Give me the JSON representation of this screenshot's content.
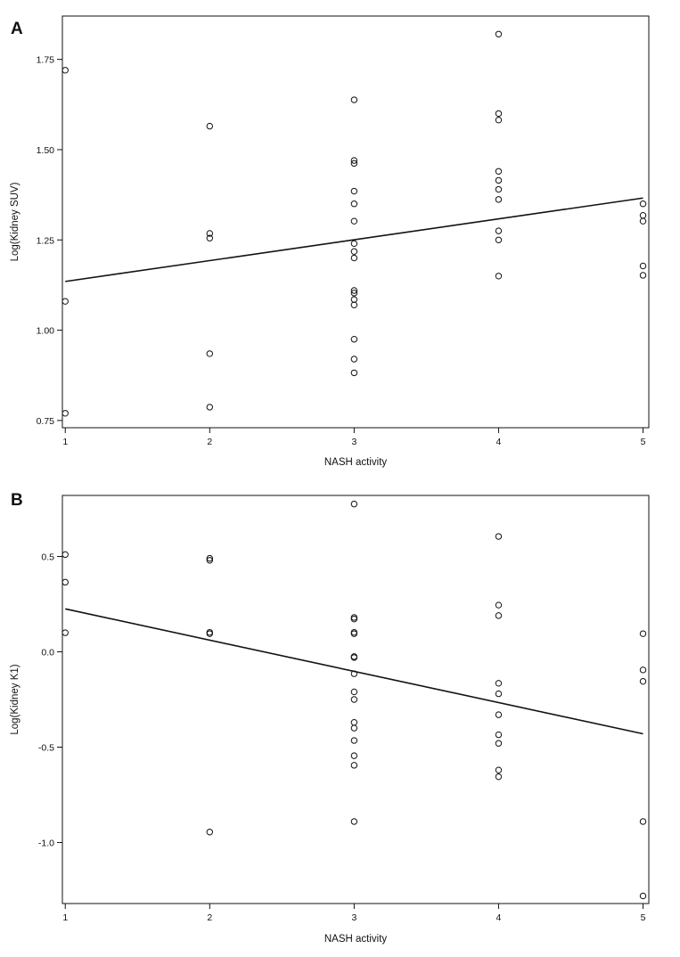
{
  "chart_data": [
    {
      "type": "scatter",
      "panel_label": "A",
      "xlabel": "NASH activity",
      "ylabel": "Log(Kidney SUV)",
      "xlim": [
        0.98,
        5.04
      ],
      "ylim": [
        0.73,
        1.87
      ],
      "xticks": [
        1,
        2,
        3,
        4,
        5
      ],
      "xtick_labels": [
        "1",
        "2",
        "3",
        "4",
        "5"
      ],
      "yticks": [
        0.75,
        1.0,
        1.25,
        1.5,
        1.75
      ],
      "ytick_labels": [
        "0.75",
        "1.00",
        "1.25",
        "1.50",
        "1.75"
      ],
      "grid": false,
      "points": [
        {
          "x": 1,
          "y": 1.72
        },
        {
          "x": 1,
          "y": 1.08
        },
        {
          "x": 1,
          "y": 0.77
        },
        {
          "x": 2,
          "y": 1.565
        },
        {
          "x": 2,
          "y": 1.268
        },
        {
          "x": 2,
          "y": 1.255
        },
        {
          "x": 2,
          "y": 0.935
        },
        {
          "x": 2,
          "y": 0.787
        },
        {
          "x": 3,
          "y": 1.638
        },
        {
          "x": 3,
          "y": 1.47
        },
        {
          "x": 3,
          "y": 1.462
        },
        {
          "x": 3,
          "y": 1.385
        },
        {
          "x": 3,
          "y": 1.35
        },
        {
          "x": 3,
          "y": 1.302
        },
        {
          "x": 3,
          "y": 1.24
        },
        {
          "x": 3,
          "y": 1.218
        },
        {
          "x": 3,
          "y": 1.2
        },
        {
          "x": 3,
          "y": 1.11
        },
        {
          "x": 3,
          "y": 1.103
        },
        {
          "x": 3,
          "y": 1.085
        },
        {
          "x": 3,
          "y": 1.07
        },
        {
          "x": 3,
          "y": 0.975
        },
        {
          "x": 3,
          "y": 0.92
        },
        {
          "x": 3,
          "y": 0.882
        },
        {
          "x": 4,
          "y": 1.82
        },
        {
          "x": 4,
          "y": 1.6
        },
        {
          "x": 4,
          "y": 1.582
        },
        {
          "x": 4,
          "y": 1.44
        },
        {
          "x": 4,
          "y": 1.415
        },
        {
          "x": 4,
          "y": 1.39
        },
        {
          "x": 4,
          "y": 1.362
        },
        {
          "x": 4,
          "y": 1.275
        },
        {
          "x": 4,
          "y": 1.25
        },
        {
          "x": 4,
          "y": 1.15
        },
        {
          "x": 5,
          "y": 1.35
        },
        {
          "x": 5,
          "y": 1.318
        },
        {
          "x": 5,
          "y": 1.302
        },
        {
          "x": 5,
          "y": 1.178
        },
        {
          "x": 5,
          "y": 1.152
        }
      ],
      "fit_line": {
        "x": [
          1,
          5
        ],
        "y": [
          1.135,
          1.366
        ]
      }
    },
    {
      "type": "scatter",
      "panel_label": "B",
      "xlabel": "NASH activity",
      "ylabel": "Log(Kidney K1)",
      "xlim": [
        0.98,
        5.04
      ],
      "ylim": [
        -1.32,
        0.82
      ],
      "xticks": [
        1,
        2,
        3,
        4,
        5
      ],
      "xtick_labels": [
        "1",
        "2",
        "3",
        "4",
        "5"
      ],
      "yticks": [
        -1.0,
        -0.5,
        0.0,
        0.5
      ],
      "ytick_labels": [
        "-1.0",
        "-0.5",
        "0.0",
        "0.5"
      ],
      "grid": false,
      "points": [
        {
          "x": 1,
          "y": 0.51
        },
        {
          "x": 1,
          "y": 0.365
        },
        {
          "x": 1,
          "y": 0.1
        },
        {
          "x": 2,
          "y": 0.49
        },
        {
          "x": 2,
          "y": 0.48
        },
        {
          "x": 2,
          "y": 0.102
        },
        {
          "x": 2,
          "y": 0.095
        },
        {
          "x": 2,
          "y": -0.945
        },
        {
          "x": 3,
          "y": 0.775
        },
        {
          "x": 3,
          "y": 0.18
        },
        {
          "x": 3,
          "y": 0.172
        },
        {
          "x": 3,
          "y": 0.102
        },
        {
          "x": 3,
          "y": 0.095
        },
        {
          "x": 3,
          "y": -0.025
        },
        {
          "x": 3,
          "y": -0.03
        },
        {
          "x": 3,
          "y": -0.115
        },
        {
          "x": 3,
          "y": -0.21
        },
        {
          "x": 3,
          "y": -0.25
        },
        {
          "x": 3,
          "y": -0.37
        },
        {
          "x": 3,
          "y": -0.4
        },
        {
          "x": 3,
          "y": -0.465
        },
        {
          "x": 3,
          "y": -0.545
        },
        {
          "x": 3,
          "y": -0.595
        },
        {
          "x": 3,
          "y": -0.89
        },
        {
          "x": 4,
          "y": 0.605
        },
        {
          "x": 4,
          "y": 0.245
        },
        {
          "x": 4,
          "y": 0.19
        },
        {
          "x": 4,
          "y": -0.165
        },
        {
          "x": 4,
          "y": -0.22
        },
        {
          "x": 4,
          "y": -0.33
        },
        {
          "x": 4,
          "y": -0.435
        },
        {
          "x": 4,
          "y": -0.48
        },
        {
          "x": 4,
          "y": -0.62
        },
        {
          "x": 4,
          "y": -0.655
        },
        {
          "x": 5,
          "y": 0.095
        },
        {
          "x": 5,
          "y": -0.095
        },
        {
          "x": 5,
          "y": -0.155
        },
        {
          "x": 5,
          "y": -0.89
        },
        {
          "x": 5,
          "y": -1.28
        }
      ],
      "fit_line": {
        "x": [
          1,
          5
        ],
        "y": [
          0.225,
          -0.43
        ]
      }
    }
  ]
}
